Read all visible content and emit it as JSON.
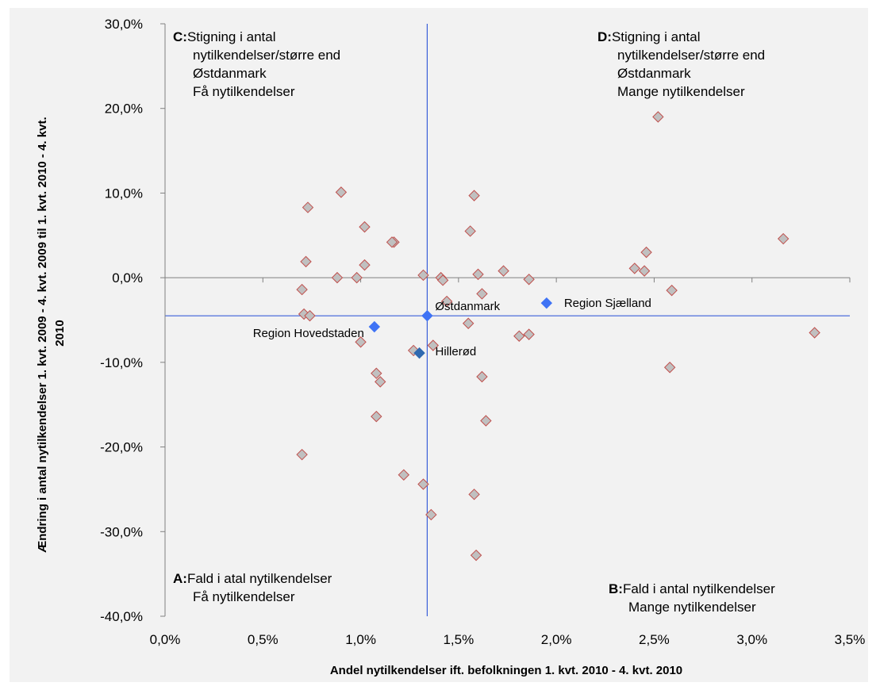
{
  "chart_data": {
    "type": "scatter",
    "xlabel": "Andel nytilkendelser ift. befolkningen 1. kvt. 2010 - 4. kvt. 2010",
    "ylabel": "Ændring i antal nytilkendelser 1. kvt. 2009 - 4. kvt. 2009 til 1. kvt. 2010 - 4. kvt. 2010",
    "xlim": [
      0,
      3.5
    ],
    "ylim": [
      -40,
      30
    ],
    "x_ticks": [
      "0,0%",
      "0,5%",
      "1,0%",
      "1,5%",
      "2,0%",
      "2,5%",
      "3,0%",
      "3,5%"
    ],
    "y_ticks": [
      "30,0%",
      "20,0%",
      "10,0%",
      "0,0%",
      "-10,0%",
      "-20,0%",
      "-30,0%",
      "-40,0%"
    ],
    "reference_lines": {
      "x": 1.34,
      "y": -4.5
    },
    "quadrants": [
      {
        "id": "C",
        "letter": "C:",
        "lines": [
          "Stigning i antal",
          "nytilkendelser/større end",
          "Østdanmark",
          "Få nytilkendelser"
        ]
      },
      {
        "id": "D",
        "letter": "D:",
        "lines": [
          "Stigning i antal",
          "nytilkendelser/større end",
          "Østdanmark",
          "Mange nytilkendelser"
        ]
      },
      {
        "id": "A",
        "letter": "A:",
        "lines": [
          "Fald i atal nytilkendelser",
          "Få nytilkendelser"
        ]
      },
      {
        "id": "B",
        "letter": "B:",
        "lines": [
          "Fald i antal nytilkendelser",
          "Mange nytilkendelser"
        ]
      }
    ],
    "labeled_points": [
      {
        "label": "Østdanmark",
        "x": 1.34,
        "y": -4.5
      },
      {
        "label": "Region Sjælland",
        "x": 1.95,
        "y": -3.0
      },
      {
        "label": "Region Hovedstaden",
        "x": 1.07,
        "y": -5.8
      },
      {
        "label": "Hillerød",
        "x": 1.3,
        "y": -8.9
      }
    ],
    "points": [
      {
        "x": 0.9,
        "y": 10.1
      },
      {
        "x": 0.73,
        "y": 8.3
      },
      {
        "x": 1.02,
        "y": 6.0
      },
      {
        "x": 1.17,
        "y": 4.2
      },
      {
        "x": 1.16,
        "y": 4.2
      },
      {
        "x": 0.72,
        "y": 1.9
      },
      {
        "x": 1.02,
        "y": 1.5
      },
      {
        "x": 0.88,
        "y": 0.0
      },
      {
        "x": 0.98,
        "y": 0.0
      },
      {
        "x": 0.7,
        "y": -1.4
      },
      {
        "x": 0.71,
        "y": -4.3
      },
      {
        "x": 0.74,
        "y": -4.5
      },
      {
        "x": 1.0,
        "y": -7.6
      },
      {
        "x": 1.08,
        "y": -11.3
      },
      {
        "x": 1.1,
        "y": -12.3
      },
      {
        "x": 1.08,
        "y": -16.4
      },
      {
        "x": 0.7,
        "y": -20.9
      },
      {
        "x": 1.32,
        "y": 0.3
      },
      {
        "x": 1.41,
        "y": 0.0
      },
      {
        "x": 1.42,
        "y": -0.3
      },
      {
        "x": 1.44,
        "y": -2.8
      },
      {
        "x": 1.27,
        "y": -8.6
      },
      {
        "x": 1.37,
        "y": -8.0
      },
      {
        "x": 1.58,
        "y": 9.7
      },
      {
        "x": 1.56,
        "y": 5.5
      },
      {
        "x": 1.6,
        "y": 0.4
      },
      {
        "x": 1.62,
        "y": -1.9
      },
      {
        "x": 1.55,
        "y": -5.4
      },
      {
        "x": 1.62,
        "y": -11.7
      },
      {
        "x": 1.64,
        "y": -16.9
      },
      {
        "x": 1.22,
        "y": -23.3
      },
      {
        "x": 1.32,
        "y": -24.4
      },
      {
        "x": 1.58,
        "y": -25.6
      },
      {
        "x": 1.36,
        "y": -28.0
      },
      {
        "x": 1.59,
        "y": -32.8
      },
      {
        "x": 1.73,
        "y": 0.8
      },
      {
        "x": 1.86,
        "y": -0.2
      },
      {
        "x": 1.81,
        "y": -6.9
      },
      {
        "x": 1.86,
        "y": -6.7
      },
      {
        "x": 2.52,
        "y": 19.0
      },
      {
        "x": 2.46,
        "y": 3.0
      },
      {
        "x": 2.4,
        "y": 1.1
      },
      {
        "x": 2.45,
        "y": 0.8
      },
      {
        "x": 2.59,
        "y": -1.5
      },
      {
        "x": 2.58,
        "y": -10.6
      },
      {
        "x": 3.16,
        "y": 4.6
      },
      {
        "x": 3.32,
        "y": -6.5
      }
    ],
    "colors": {
      "point_fill": "#c0c0c0",
      "point_stroke": "#c0504d",
      "labeled_point": "#3f73f5",
      "hillerod_point": "#2f69b0",
      "reference_line": "#3a5fd9",
      "axis": "#808080"
    }
  }
}
